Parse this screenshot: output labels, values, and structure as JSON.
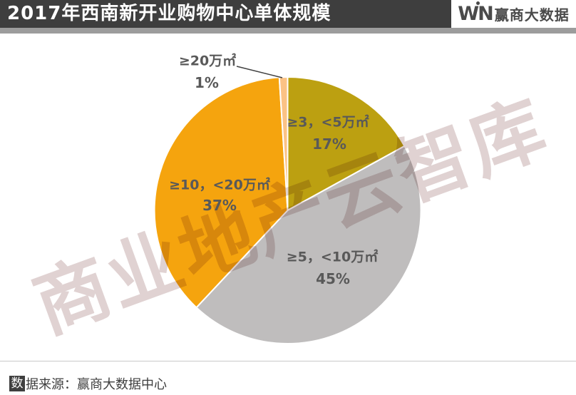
{
  "header": {
    "title": "2017年西南新开业购物中心单体规模",
    "logo": {
      "w": "W",
      "n": "N",
      "name": "赢商大数据"
    }
  },
  "watermark": "商业地产云智库",
  "footer": {
    "highlight": "数",
    "rest": "据来源：赢商大数据中心"
  },
  "colors": {
    "header_bg": "#3E3E3E",
    "divider_strip": "#9C9C9C",
    "logo_text": "#4A4A4A",
    "label_text": "#595959",
    "watermark": "#E0D2D2",
    "footer_text": "#3E3E3E"
  },
  "chart_data": {
    "type": "pie",
    "title": "2017年西南新开业购物中心单体规模",
    "start_angle_deg": 0,
    "direction": "clockwise",
    "legend_position": "none",
    "grid": false,
    "slices": [
      {
        "label": "≥3，<5万㎡",
        "value": 17,
        "pct_label": "17%",
        "color": "#BCA011",
        "label_placement": "inside"
      },
      {
        "label": "≥5，<10万㎡",
        "value": 45,
        "pct_label": "45%",
        "color": "#BFBDBD",
        "label_placement": "inside"
      },
      {
        "label": "≥10，<20万㎡",
        "value": 37,
        "pct_label": "37%",
        "color": "#F5A40E",
        "label_placement": "inside"
      },
      {
        "label": "≥20万㎡",
        "value": 1,
        "pct_label": "1%",
        "color": "#FBC285",
        "label_placement": "outside-top"
      }
    ]
  }
}
